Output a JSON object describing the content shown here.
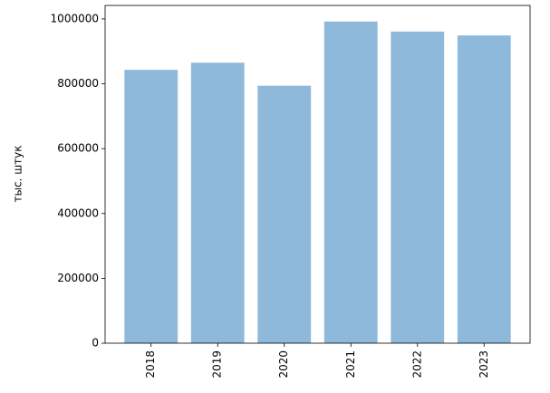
{
  "chart_data": {
    "type": "bar",
    "y_label": "тыс. штук",
    "categories": [
      "2018",
      "2019",
      "2020",
      "2021",
      "2022",
      "2023"
    ],
    "values": [
      843000,
      865000,
      794000,
      992000,
      961000,
      949000
    ],
    "color": "#8fb9da",
    "ylim": [
      0,
      1041600
    ],
    "yticks": [
      0,
      200000,
      400000,
      600000,
      800000,
      1000000
    ]
  }
}
